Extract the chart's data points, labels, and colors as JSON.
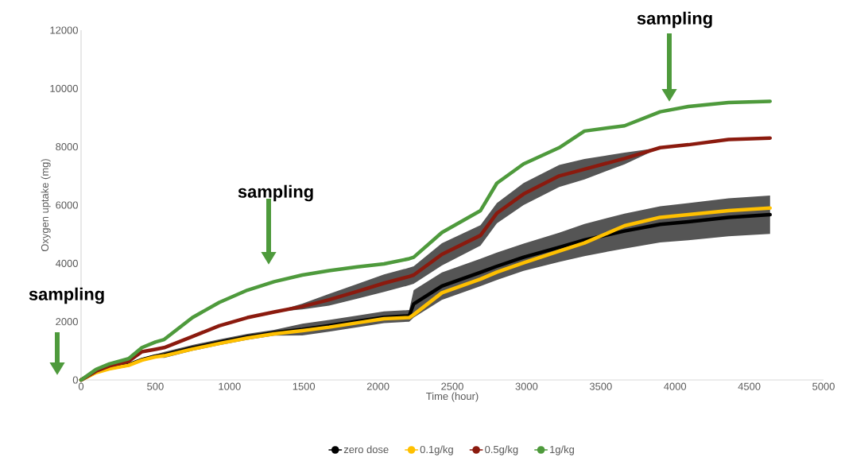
{
  "chart_data": {
    "type": "line",
    "xlabel": "Time (hour)",
    "ylabel": "Oxygen uptake (mg)",
    "xlim": [
      0,
      5000
    ],
    "ylim": [
      0,
      12000
    ],
    "xticks": [
      0,
      500,
      1000,
      1500,
      2000,
      2500,
      3000,
      3500,
      4000,
      4500,
      5000
    ],
    "yticks": [
      0,
      2000,
      4000,
      6000,
      8000,
      10000,
      12000
    ],
    "x": [
      0,
      100,
      190,
      320,
      410,
      500,
      560,
      750,
      930,
      1120,
      1300,
      1490,
      1670,
      1860,
      2040,
      2210,
      2240,
      2430,
      2690,
      2800,
      2980,
      3220,
      3390,
      3660,
      3900,
      4090,
      4360,
      4640
    ],
    "legend": "bottom",
    "grid": false,
    "series": [
      {
        "name": "zero dose",
        "color": "#000000",
        "values": [
          0,
          270,
          400,
          520,
          700,
          820,
          860,
          1100,
          1290,
          1480,
          1620,
          1730,
          1860,
          2010,
          2150,
          2200,
          2610,
          3220,
          3690,
          3900,
          4210,
          4550,
          4800,
          5110,
          5340,
          5430,
          5580,
          5670
        ],
        "lower": [
          0,
          220,
          350,
          470,
          650,
          770,
          760,
          1000,
          1190,
          1380,
          1520,
          1530,
          1660,
          1810,
          1950,
          2000,
          2140,
          2750,
          3220,
          3430,
          3740,
          4050,
          4250,
          4510,
          4720,
          4790,
          4930,
          5010
        ],
        "upper": [
          0,
          320,
          450,
          570,
          750,
          870,
          960,
          1200,
          1390,
          1580,
          1720,
          1930,
          2060,
          2210,
          2350,
          2400,
          3080,
          3690,
          4160,
          4370,
          4680,
          5050,
          5350,
          5710,
          5960,
          6070,
          6230,
          6330
        ]
      },
      {
        "name": "0.1g/kg",
        "color": "#ffc000",
        "values": [
          0,
          250,
          380,
          500,
          680,
          790,
          830,
          1060,
          1250,
          1440,
          1580,
          1690,
          1810,
          1960,
          2100,
          2140,
          2240,
          2990,
          3460,
          3700,
          4020,
          4420,
          4700,
          5290,
          5580,
          5670,
          5810,
          5900
        ]
      },
      {
        "name": "0.5g/kg",
        "color": "#8b1a0e",
        "values": [
          0,
          300,
          480,
          640,
          970,
          1050,
          1110,
          1490,
          1860,
          2140,
          2330,
          2520,
          2750,
          3040,
          3320,
          3550,
          3600,
          4310,
          4960,
          5720,
          6380,
          7000,
          7230,
          7600,
          7970,
          8070,
          8250,
          8300
        ],
        "lower": [
          0,
          300,
          480,
          640,
          970,
          1050,
          1110,
          1490,
          1860,
          2140,
          2330,
          2420,
          2550,
          2790,
          3020,
          3250,
          3300,
          3930,
          4610,
          5370,
          6000,
          6620,
          6880,
          7400,
          7970,
          8070,
          8250,
          8300
        ],
        "upper": [
          0,
          300,
          480,
          640,
          970,
          1050,
          1110,
          1490,
          1860,
          2140,
          2330,
          2620,
          2950,
          3290,
          3620,
          3850,
          3900,
          4690,
          5310,
          6070,
          6760,
          7380,
          7580,
          7800,
          7970,
          8070,
          8250,
          8300
        ]
      },
      {
        "name": "1g/kg",
        "color": "#4e9a3c",
        "values": [
          0,
          360,
          550,
          730,
          1110,
          1300,
          1390,
          2140,
          2660,
          3080,
          3370,
          3600,
          3750,
          3880,
          3980,
          4160,
          4210,
          5060,
          5810,
          6750,
          7410,
          7970,
          8540,
          8720,
          9200,
          9380,
          9520,
          9560
        ]
      }
    ],
    "annotations": [
      "sampling",
      "sampling",
      "sampling"
    ]
  }
}
